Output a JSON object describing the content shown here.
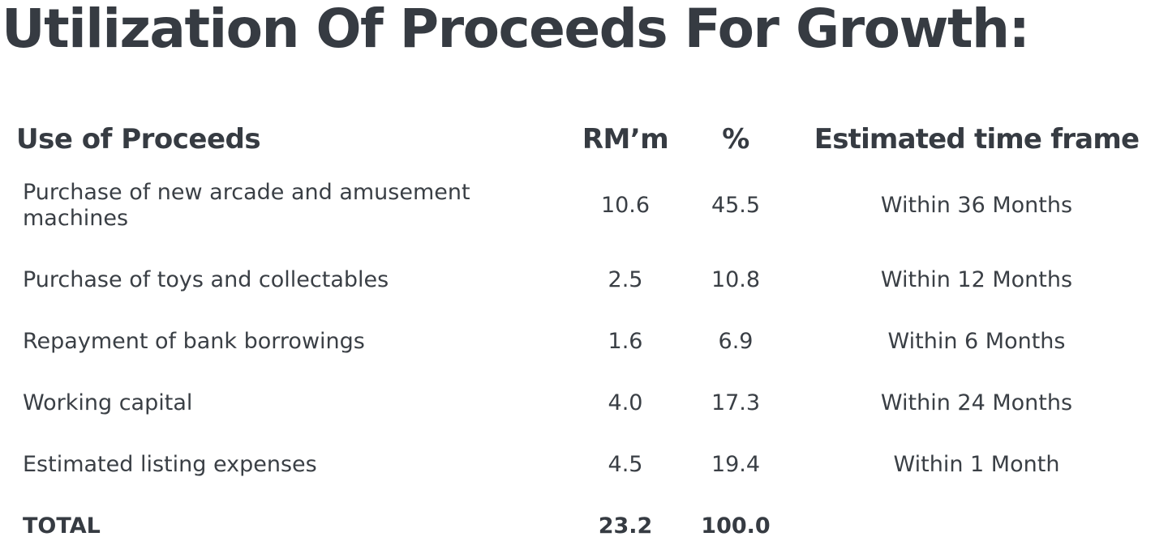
{
  "title": "Utilization Of Proceeds For Growth:",
  "table": {
    "headers": {
      "use": "Use of Proceeds",
      "rm": "RM’m",
      "pct": "%",
      "time": "Estimated time frame"
    },
    "rows": [
      {
        "use": "Purchase of new arcade and amusement machines",
        "rm": "10.6",
        "pct": "45.5",
        "time": "Within 36 Months"
      },
      {
        "use": "Purchase of toys and collectables",
        "rm": "2.5",
        "pct": "10.8",
        "time": "Within 12 Months"
      },
      {
        "use": "Repayment of bank borrowings",
        "rm": "1.6",
        "pct": "6.9",
        "time": "Within 6 Months"
      },
      {
        "use": "Working capital",
        "rm": "4.0",
        "pct": "17.3",
        "time": "Within 24 Months"
      },
      {
        "use": "Estimated listing expenses",
        "rm": "4.5",
        "pct": "19.4",
        "time": "Within 1 Month"
      }
    ],
    "total": {
      "label": "TOTAL",
      "rm": "23.2",
      "pct": "100.0"
    }
  }
}
